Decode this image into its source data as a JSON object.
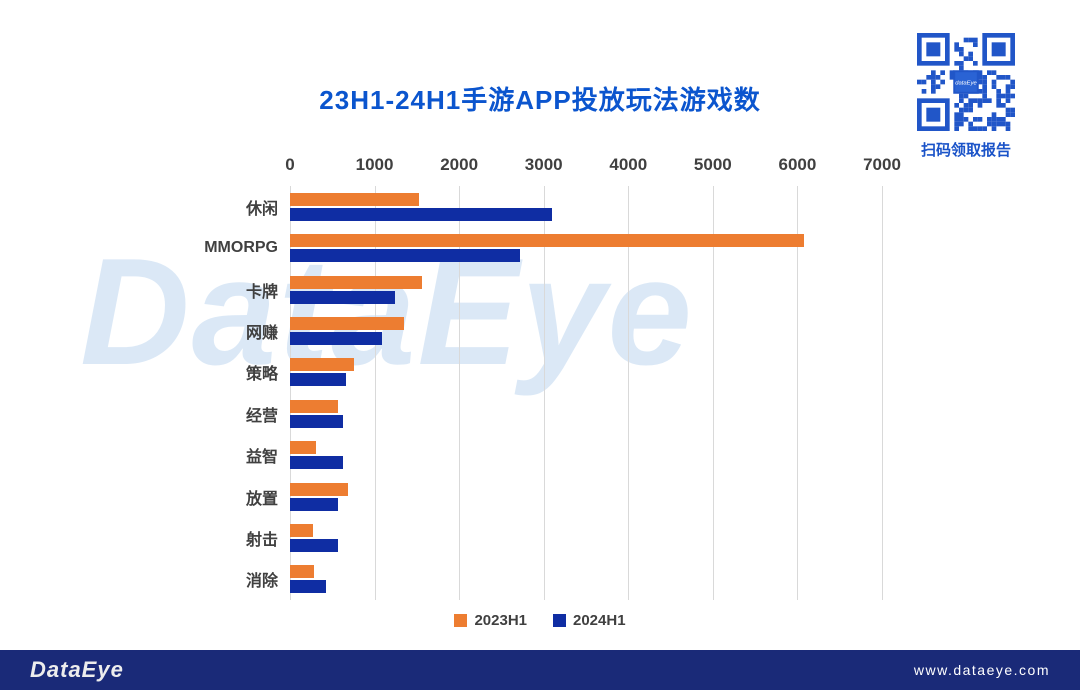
{
  "title": "23H1-24H1手游APP投放玩法游戏数",
  "qr": {
    "caption": "扫码领取报告",
    "color": "#2156C8"
  },
  "watermark": "DataEye",
  "chart_data": {
    "type": "bar",
    "orientation": "horizontal",
    "title": "23H1-24H1手游APP投放玩法游戏数",
    "categories": [
      "休闲",
      "MMORPG",
      "卡牌",
      "网赚",
      "策略",
      "经营",
      "益智",
      "放置",
      "射击",
      "消除"
    ],
    "series": [
      {
        "name": "2023H1",
        "color": "#ED7D31",
        "values": [
          1520,
          6080,
          1560,
          1350,
          760,
          570,
          310,
          690,
          270,
          280
        ]
      },
      {
        "name": "2024H1",
        "color": "#0F2DA3",
        "values": [
          3100,
          2720,
          1240,
          1090,
          660,
          630,
          630,
          570,
          570,
          430
        ]
      }
    ],
    "xlim": [
      0,
      7000
    ],
    "x_ticks": [
      0,
      1000,
      2000,
      3000,
      4000,
      5000,
      6000,
      7000
    ],
    "grid": true,
    "legend_position": "bottom"
  },
  "footer": {
    "logo": "DataEye",
    "url": "www.dataeye.com"
  }
}
